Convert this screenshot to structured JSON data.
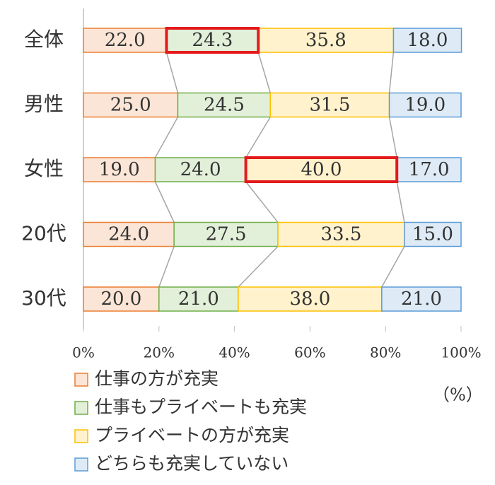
{
  "chart_data": {
    "type": "stacked-bar-horizontal",
    "categories": [
      "全体",
      "男性",
      "女性",
      "20代",
      "30代"
    ],
    "series": [
      {
        "name": "仕事の方が充実",
        "color": "#ed7d31",
        "fill": "#fbe5d6",
        "values": [
          22.0,
          25.0,
          19.0,
          24.0,
          20.0
        ],
        "value_labels": [
          "22.0",
          "25.0",
          "19.0",
          "24.0",
          "20.0"
        ]
      },
      {
        "name": "仕事もプライベートも充実",
        "color": "#70ad47",
        "fill": "#e2f0d9",
        "values": [
          24.3,
          24.5,
          24.0,
          27.5,
          21.0
        ],
        "value_labels": [
          "24.3",
          "24.5",
          "24.0",
          "27.5",
          "21.0"
        ]
      },
      {
        "name": "プライベートの方が充実",
        "color": "#ffc000",
        "fill": "#fff2cc",
        "values": [
          35.8,
          31.5,
          40.0,
          33.5,
          38.0
        ],
        "value_labels": [
          "35.8",
          "31.5",
          "40.0",
          "33.5",
          "38.0"
        ]
      },
      {
        "name": "どちらも充実していない",
        "color": "#5b9bd5",
        "fill": "#deebf7",
        "values": [
          18.0,
          19.0,
          17.0,
          15.0,
          21.0
        ],
        "value_labels": [
          "18.0",
          "19.0",
          "17.0",
          "15.0",
          "21.0"
        ]
      }
    ],
    "xlim": [
      0,
      100
    ],
    "xticks": [
      {
        "value": 0,
        "label": "0%"
      },
      {
        "value": 20,
        "label": "20%"
      },
      {
        "value": 40,
        "label": "40%"
      },
      {
        "value": 60,
        "label": "60%"
      },
      {
        "value": 80,
        "label": "80%"
      },
      {
        "value": 100,
        "label": "100%"
      }
    ],
    "unit_label": "（%）",
    "highlights": [
      {
        "category": 0,
        "series": 1
      },
      {
        "category": 2,
        "series": 2
      }
    ],
    "highlight_color": "#e41a1c",
    "connector_color": "#a5a5a5"
  }
}
